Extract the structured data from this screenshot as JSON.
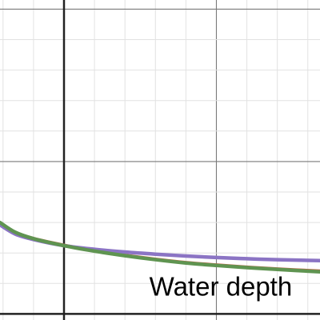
{
  "chart_data": {
    "type": "line",
    "title": "",
    "xlabel": "",
    "ylabel": "",
    "xlim": [
      -2.1,
      8.4
    ],
    "ylim": [
      -0.2,
      10.3
    ],
    "grid": true,
    "x_minor_step": 1,
    "y_minor_step": 1,
    "x_major_step": 5,
    "y_major_step": 5,
    "annotations": [
      {
        "text": "Water depth",
        "x": 2.8,
        "y": 0.6
      }
    ],
    "series": [
      {
        "color": "#c8664a",
        "x": [
          -2.1,
          -1.6,
          -1,
          0,
          1,
          2,
          3,
          4,
          5,
          6,
          7,
          8.4
        ],
        "y": [
          2.98,
          2.67,
          2.47,
          2.25,
          2.07,
          1.92,
          1.79,
          1.68,
          1.6,
          1.53,
          1.47,
          1.4
        ]
      },
      {
        "color": "#8b74c4",
        "x": [
          -2.1,
          -1.6,
          -1,
          0,
          1,
          2,
          3,
          4,
          5,
          6,
          7,
          8.4
        ],
        "y": [
          2.92,
          2.62,
          2.44,
          2.24,
          2.12,
          2.03,
          1.96,
          1.9,
          1.85,
          1.81,
          1.78,
          1.75
        ]
      },
      {
        "color": "#5f9451",
        "x": [
          -2.1,
          -1.6,
          -1,
          0,
          1,
          2,
          3,
          4,
          5,
          6,
          7,
          8.4
        ],
        "y": [
          3.0,
          2.68,
          2.47,
          2.24,
          2.06,
          1.91,
          1.78,
          1.67,
          1.59,
          1.52,
          1.46,
          1.38
        ]
      }
    ]
  }
}
